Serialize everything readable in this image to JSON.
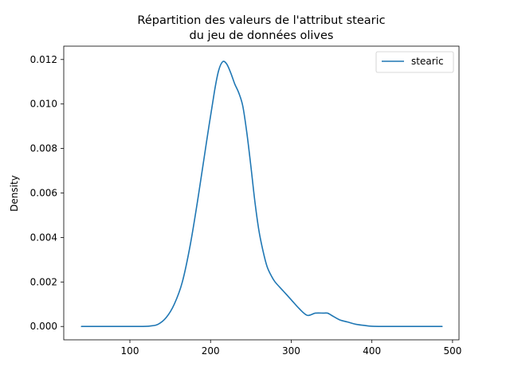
{
  "chart_data": {
    "type": "line",
    "title_line1": "Répartition des valeurs de l'attribut stearic",
    "title_line2": "du jeu de données olives",
    "xlabel": "",
    "ylabel": "Density",
    "xlim": [
      18,
      508
    ],
    "ylim": [
      -0.0006,
      0.0126
    ],
    "xticks": [
      100,
      200,
      300,
      400,
      500
    ],
    "yticks": [
      0.0,
      0.002,
      0.004,
      0.006,
      0.008,
      0.01,
      0.012
    ],
    "ytick_labels": [
      "0.000",
      "0.002",
      "0.004",
      "0.006",
      "0.008",
      "0.010",
      "0.012"
    ],
    "legend_position": "top-right",
    "series_color": "#1f77b4",
    "series": [
      {
        "name": "stearic",
        "x": [
          40,
          80,
          110,
          125,
          135,
          145,
          155,
          165,
          175,
          185,
          195,
          205,
          210,
          215,
          220,
          225,
          230,
          235,
          240,
          245,
          250,
          255,
          260,
          265,
          270,
          275,
          280,
          290,
          300,
          310,
          320,
          330,
          340,
          345,
          350,
          360,
          370,
          380,
          390,
          400,
          420,
          450,
          487
        ],
        "y": [
          0.0,
          0.0,
          0.0,
          2e-05,
          0.0001,
          0.0004,
          0.001,
          0.002,
          0.0037,
          0.0059,
          0.0083,
          0.0106,
          0.0115,
          0.0119,
          0.0118,
          0.0114,
          0.0109,
          0.0105,
          0.0099,
          0.0087,
          0.0072,
          0.0056,
          0.0043,
          0.0034,
          0.0027,
          0.0023,
          0.002,
          0.0016,
          0.0012,
          0.0008,
          0.0005,
          0.0006,
          0.0006,
          0.0006,
          0.0005,
          0.0003,
          0.0002,
          0.0001,
          5e-05,
          1e-05,
          0.0,
          0.0,
          0.0
        ]
      }
    ]
  }
}
